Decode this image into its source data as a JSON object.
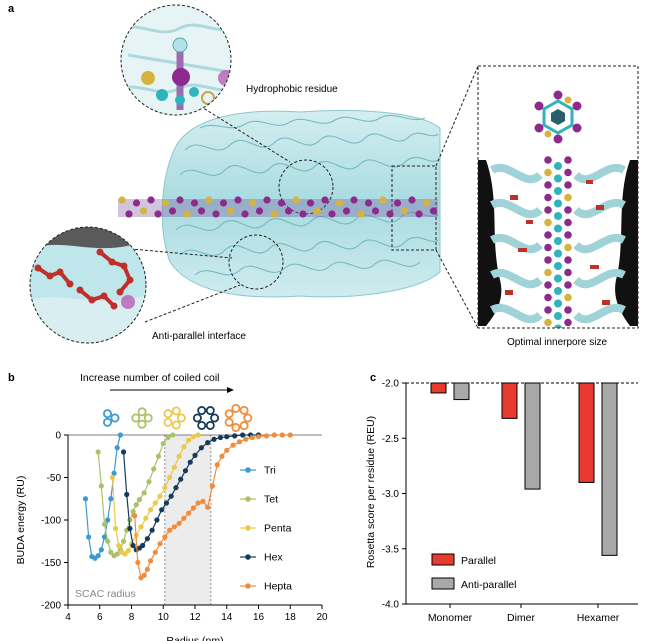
{
  "panel_a": {
    "letter": "a",
    "labels": {
      "hydrophobic": "Hydrophobic residue",
      "antiparallel": "Anti-parallel interface",
      "innerpore": "Optimal innerpore size"
    }
  },
  "panel_b": {
    "letter": "b",
    "header": "Increase number of coiled coil",
    "scac_label": "SCAC radius"
  },
  "panel_c": {
    "letter": "c"
  },
  "colors": {
    "tri": "#3b9bd1",
    "tet": "#a9c267",
    "penta": "#ecc94d",
    "hex": "#143b5c",
    "hepta": "#f28c3a",
    "parallel": "#e83a2e",
    "antiparallel": "#a8a8a8",
    "protein": "#9fd3d8",
    "iodine": "#8e2a8e",
    "sulfur": "#d6b33f",
    "carbon": "#2fb3bc"
  },
  "chart_data": [
    {
      "type": "line",
      "xlabel": "Radius (nm)",
      "ylabel": "BUDA energy (RU)",
      "xlim": [
        4,
        20
      ],
      "ylim": [
        -200,
        0
      ],
      "xticks": [
        "4",
        "6",
        "8",
        "10",
        "12",
        "14",
        "16",
        "18",
        "20"
      ],
      "yticks": [
        "0",
        "-50",
        "-100",
        "-150",
        "-200"
      ],
      "shaded_region": [
        10.1,
        13.0
      ],
      "legend": "right",
      "series": [
        {
          "name": "Tri",
          "x": [
            5.1,
            5.3,
            5.5,
            5.7,
            5.9,
            6.1,
            6.3,
            6.5,
            6.7,
            6.9,
            7.1,
            7.3
          ],
          "y": [
            -75,
            -120,
            -143,
            -145,
            -142,
            -135,
            -120,
            -100,
            -75,
            -45,
            -15,
            0
          ]
        },
        {
          "name": "Tet",
          "x": [
            5.9,
            6.1,
            6.3,
            6.5,
            6.7,
            6.9,
            7.1,
            7.3,
            7.5,
            7.7,
            7.9,
            8.1,
            8.3,
            8.5,
            8.8,
            9.1,
            9.4,
            9.7,
            10.0,
            10.3,
            10.6
          ],
          "y": [
            -20,
            -60,
            -105,
            -125,
            -138,
            -142,
            -140,
            -135,
            -125,
            -112,
            -100,
            -90,
            -82,
            -76,
            -68,
            -55,
            -40,
            -25,
            -10,
            -3,
            0
          ]
        },
        {
          "name": "Penta",
          "x": [
            6.8,
            7.0,
            7.2,
            7.4,
            7.6,
            7.8,
            8.0,
            8.3,
            8.6,
            8.9,
            9.2,
            9.5,
            9.8,
            10.1,
            10.4,
            10.7,
            11.0,
            11.3,
            11.6,
            11.9,
            12.2
          ],
          "y": [
            -50,
            -110,
            -130,
            -138,
            -140,
            -136,
            -128,
            -118,
            -108,
            -98,
            -88,
            -80,
            -72,
            -62,
            -50,
            -38,
            -25,
            -14,
            -6,
            -2,
            0
          ]
        },
        {
          "name": "Hex",
          "x": [
            7.5,
            7.7,
            7.9,
            8.1,
            8.3,
            8.5,
            8.7,
            9.0,
            9.3,
            9.6,
            9.9,
            10.2,
            10.5,
            10.8,
            11.1,
            11.4,
            11.7,
            12.0,
            12.4,
            12.8,
            13.2,
            13.6,
            14.0,
            14.5,
            15.0,
            15.5,
            16.0
          ],
          "y": [
            -20,
            -70,
            -110,
            -130,
            -135,
            -133,
            -130,
            -122,
            -112,
            -100,
            -88,
            -80,
            -72,
            -62,
            -52,
            -42,
            -32,
            -24,
            -15,
            -9,
            -5,
            -3,
            -2,
            -1,
            0,
            0,
            0
          ]
        },
        {
          "name": "Hepta",
          "x": [
            8.2,
            8.4,
            8.6,
            8.8,
            9.0,
            9.2,
            9.5,
            9.8,
            10.1,
            10.4,
            10.7,
            11.0,
            11.3,
            11.6,
            11.9,
            12.2,
            12.5,
            12.8,
            13.1,
            13.4,
            13.7,
            14.0,
            14.4,
            14.8,
            15.2,
            15.6,
            16.0,
            16.5,
            17.0,
            17.5,
            18.0
          ],
          "y": [
            -95,
            -150,
            -168,
            -165,
            -158,
            -148,
            -138,
            -128,
            -120,
            -112,
            -108,
            -104,
            -98,
            -92,
            -86,
            -80,
            -78,
            -85,
            -60,
            -35,
            -25,
            -18,
            -12,
            -8,
            -5,
            -3,
            -2,
            -1,
            0,
            0,
            0
          ]
        }
      ]
    },
    {
      "type": "bar",
      "ylabel": "Rosetta score per residue (REU)",
      "categories": [
        "Monomer",
        "Dimer",
        "Hexamer"
      ],
      "ylim": [
        -4.0,
        -2.0
      ],
      "yticks": [
        "-2.0",
        "-2.5",
        "-3.0",
        "-3.5",
        "-4.0"
      ],
      "baseline": -2.0,
      "legend": "bottom-left",
      "series": [
        {
          "name": "Parallel",
          "values": [
            -2.09,
            -2.32,
            -2.9
          ]
        },
        {
          "name": "Anti-parallel",
          "values": [
            -2.15,
            -2.96,
            -3.56
          ]
        }
      ]
    }
  ]
}
